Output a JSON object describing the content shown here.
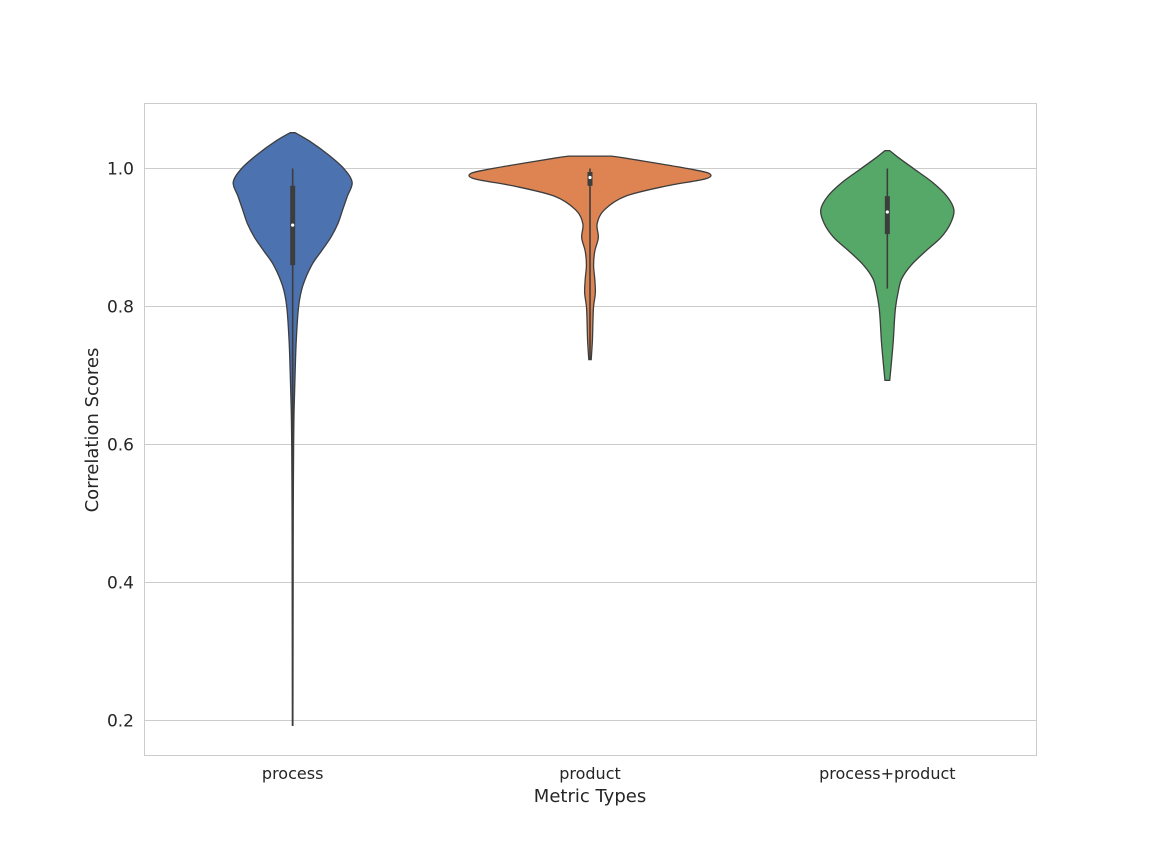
{
  "chart_data": {
    "type": "violin",
    "xlabel": "Metric Types",
    "ylabel": "Correlation Scores",
    "categories": [
      "process",
      "product",
      "process+product"
    ],
    "ylim": [
      0.15,
      1.095
    ],
    "yticks": [
      0.2,
      0.4,
      0.6,
      0.8,
      1.0
    ],
    "ytick_labels": [
      "0.2",
      "0.4",
      "0.6",
      "0.8",
      "1.0"
    ],
    "grid": "horizontal",
    "colors": [
      "#4c72b0",
      "#dd8452",
      "#55a868"
    ],
    "edge_color": "#3d3d3d",
    "violins": [
      {
        "category": "process",
        "min": 0.193,
        "q1": 0.86,
        "median": 0.918,
        "q3": 0.975,
        "max": 1.0,
        "kde_extent": [
          0.193,
          1.052
        ],
        "density": [
          [
            0.193,
            0.002
          ],
          [
            0.3,
            0.003
          ],
          [
            0.4,
            0.004
          ],
          [
            0.5,
            0.005
          ],
          [
            0.6,
            0.008
          ],
          [
            0.65,
            0.012
          ],
          [
            0.7,
            0.02
          ],
          [
            0.75,
            0.03
          ],
          [
            0.8,
            0.05
          ],
          [
            0.83,
            0.085
          ],
          [
            0.86,
            0.16
          ],
          [
            0.88,
            0.24
          ],
          [
            0.9,
            0.32
          ],
          [
            0.92,
            0.38
          ],
          [
            0.94,
            0.42
          ],
          [
            0.96,
            0.46
          ],
          [
            0.98,
            0.5
          ],
          [
            1.0,
            0.43
          ],
          [
            1.02,
            0.3
          ],
          [
            1.04,
            0.14
          ],
          [
            1.052,
            0.02
          ]
        ]
      },
      {
        "category": "product",
        "min": 0.723,
        "q1": 0.975,
        "median": 0.987,
        "q3": 0.995,
        "max": 1.0,
        "kde_extent": [
          0.723,
          1.018
        ],
        "density": [
          [
            0.723,
            0.01
          ],
          [
            0.75,
            0.02
          ],
          [
            0.78,
            0.025
          ],
          [
            0.8,
            0.03
          ],
          [
            0.82,
            0.045
          ],
          [
            0.84,
            0.04
          ],
          [
            0.86,
            0.03
          ],
          [
            0.88,
            0.04
          ],
          [
            0.9,
            0.07
          ],
          [
            0.92,
            0.06
          ],
          [
            0.94,
            0.12
          ],
          [
            0.96,
            0.3
          ],
          [
            0.975,
            0.65
          ],
          [
            0.985,
            0.97
          ],
          [
            0.993,
            1.0
          ],
          [
            1.0,
            0.82
          ],
          [
            1.008,
            0.55
          ],
          [
            1.015,
            0.3
          ],
          [
            1.018,
            0.18
          ]
        ]
      },
      {
        "category": "process+product",
        "min": 0.826,
        "q1": 0.905,
        "median": 0.937,
        "q3": 0.96,
        "max": 1.0,
        "kde_extent": [
          0.693,
          1.026
        ],
        "density": [
          [
            0.693,
            0.02
          ],
          [
            0.72,
            0.035
          ],
          [
            0.75,
            0.05
          ],
          [
            0.78,
            0.06
          ],
          [
            0.8,
            0.07
          ],
          [
            0.82,
            0.09
          ],
          [
            0.84,
            0.12
          ],
          [
            0.86,
            0.2
          ],
          [
            0.88,
            0.32
          ],
          [
            0.9,
            0.45
          ],
          [
            0.92,
            0.53
          ],
          [
            0.94,
            0.56
          ],
          [
            0.96,
            0.5
          ],
          [
            0.98,
            0.38
          ],
          [
            1.0,
            0.22
          ],
          [
            1.015,
            0.1
          ],
          [
            1.026,
            0.02
          ]
        ]
      }
    ]
  }
}
